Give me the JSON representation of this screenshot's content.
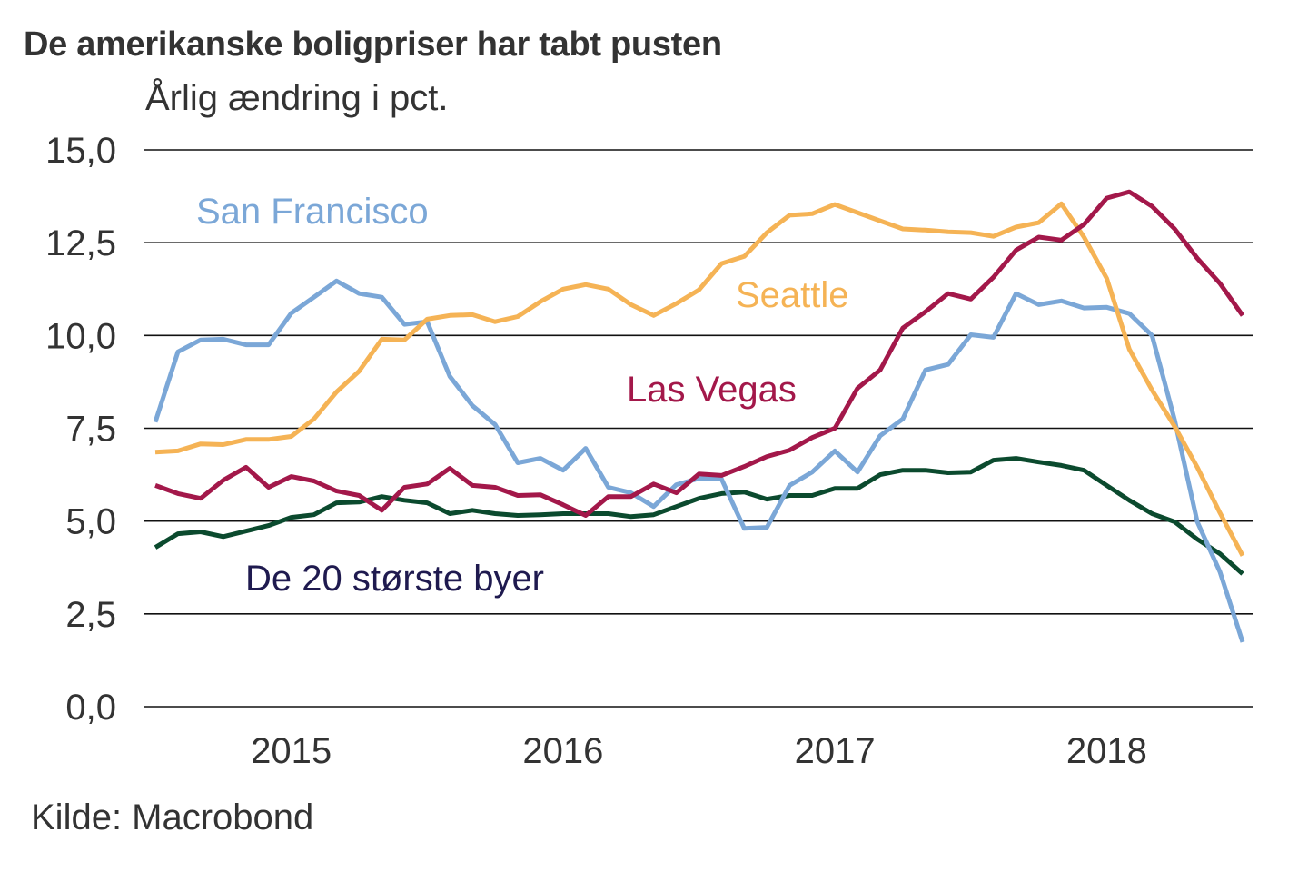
{
  "chart_data": {
    "type": "line",
    "title": "De amerikanske boligpriser har tabt pusten",
    "subtitle": "Årlig ændring i pct.",
    "source": "Kilde: Macrobond",
    "xlabel": "",
    "ylabel": "Årlig ændring i pct.",
    "ylim": [
      0,
      15
    ],
    "yticks": [
      "0,0",
      "2,5",
      "5,0",
      "7,5",
      "10,0",
      "12,5",
      "15,0"
    ],
    "ytick_values": [
      0,
      2.5,
      5,
      7.5,
      10,
      12.5,
      15
    ],
    "x_start": "2014-07",
    "x_end": "2018-07",
    "x_frequency": "monthly",
    "xtick_labels": [
      "2015",
      "2016",
      "2017",
      "2018"
    ],
    "xtick_positions": [
      6,
      18,
      30,
      42
    ],
    "grid": true,
    "legend": "inline",
    "series": [
      {
        "name": "San Francisco",
        "color": "#7BA7D7",
        "values": [
          7.67,
          9.56,
          9.88,
          9.9,
          9.75,
          9.75,
          10.6,
          11.03,
          11.47,
          11.13,
          11.03,
          10.3,
          10.37,
          8.9,
          8.11,
          7.6,
          6.57,
          6.69,
          6.37,
          6.96,
          5.91,
          5.76,
          5.39,
          5.98,
          6.15,
          6.13,
          4.8,
          4.83,
          5.96,
          6.32,
          6.89,
          6.32,
          7.3,
          7.75,
          9.07,
          9.22,
          10.02,
          9.95,
          11.13,
          10.83,
          10.93,
          10.74,
          10.76,
          10.59,
          10.0,
          7.72,
          4.98,
          3.63,
          1.74
        ]
      },
      {
        "name": "Seattle",
        "color": "#F5B355",
        "values": [
          6.86,
          6.89,
          7.08,
          7.06,
          7.2,
          7.2,
          7.28,
          7.75,
          8.48,
          9.04,
          9.9,
          9.88,
          10.44,
          10.54,
          10.56,
          10.37,
          10.51,
          10.91,
          11.25,
          11.37,
          11.25,
          10.83,
          10.54,
          10.86,
          11.23,
          11.94,
          12.13,
          12.77,
          13.24,
          13.28,
          13.53,
          13.31,
          13.09,
          12.87,
          12.84,
          12.79,
          12.77,
          12.67,
          12.92,
          13.04,
          13.55,
          12.65,
          11.54,
          9.63,
          8.53,
          7.55,
          6.45,
          5.22,
          4.07
        ]
      },
      {
        "name": "Las Vegas",
        "color": "#A3184A",
        "values": [
          5.96,
          5.74,
          5.61,
          6.1,
          6.45,
          5.91,
          6.2,
          6.08,
          5.81,
          5.69,
          5.29,
          5.91,
          6.0,
          6.42,
          5.96,
          5.91,
          5.69,
          5.71,
          5.44,
          5.15,
          5.66,
          5.66,
          6.0,
          5.76,
          6.27,
          6.23,
          6.47,
          6.74,
          6.91,
          7.25,
          7.5,
          8.58,
          9.07,
          10.2,
          10.64,
          11.13,
          10.98,
          11.57,
          12.3,
          12.65,
          12.57,
          12.99,
          13.7,
          13.87,
          13.48,
          12.87,
          12.08,
          11.4,
          10.54
        ]
      },
      {
        "name": "De 20 største byer",
        "color": "#0B4A2E",
        "label_color": "#1F1A4F",
        "values": [
          4.29,
          4.66,
          4.71,
          4.58,
          4.73,
          4.88,
          5.1,
          5.17,
          5.49,
          5.51,
          5.66,
          5.56,
          5.49,
          5.2,
          5.29,
          5.2,
          5.15,
          5.17,
          5.2,
          5.2,
          5.2,
          5.12,
          5.17,
          5.39,
          5.61,
          5.74,
          5.78,
          5.59,
          5.69,
          5.69,
          5.88,
          5.88,
          6.25,
          6.37,
          6.37,
          6.3,
          6.32,
          6.64,
          6.69,
          6.59,
          6.5,
          6.37,
          5.96,
          5.56,
          5.2,
          4.98,
          4.51,
          4.12,
          3.58
        ]
      }
    ]
  }
}
